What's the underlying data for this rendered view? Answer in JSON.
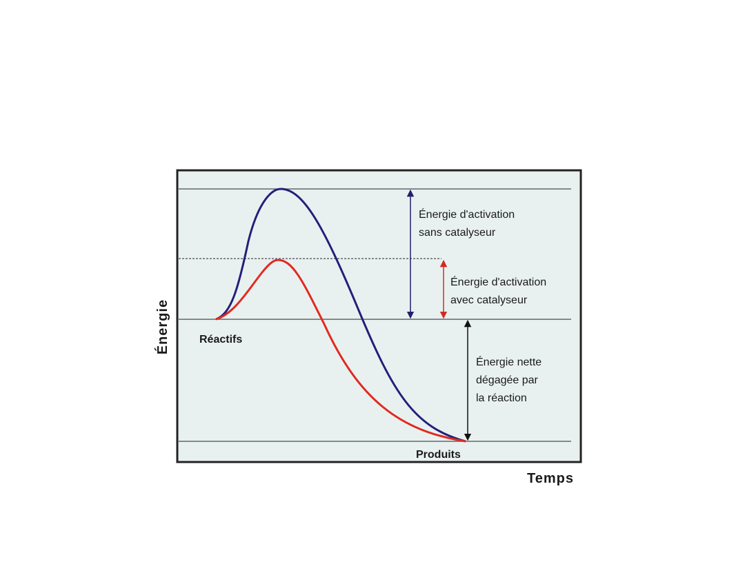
{
  "labels": {
    "axis_y": "Énergie",
    "axis_x": "Temps",
    "reactants": "Réactifs",
    "products": "Produits",
    "activation_without": [
      "Énergie d'activation",
      "sans catalyseur"
    ],
    "activation_with": [
      "Énergie d'activation",
      "avec catalyseur"
    ],
    "net_energy": [
      "Énergie nette",
      "dégagée par",
      "la réaction"
    ]
  }
}
